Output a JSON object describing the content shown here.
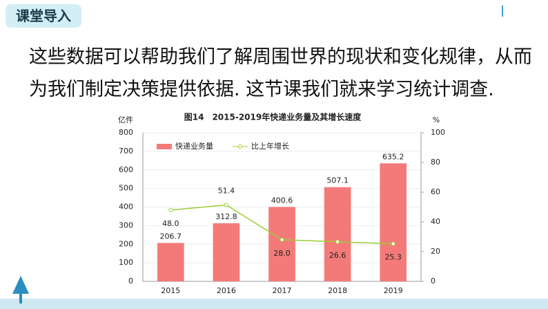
{
  "header": "课堂导入",
  "paragraph": [
    "这些数据可以帮助我们了解周围世界的现状和变化规律，从而",
    "为我们制定决策提供依据. 这节课我们就来学习统计调查."
  ],
  "chart_data": {
    "type": "bar",
    "title": "图14　2015-2019年快递业务量及其增长速度",
    "ylabel": "亿件",
    "y2label": "%",
    "categories": [
      "2015",
      "2016",
      "2017",
      "2018",
      "2019"
    ],
    "series": [
      {
        "name": "快递业务量",
        "type": "bar",
        "color": "#f47a7a",
        "values": [
          206.7,
          312.8,
          400.6,
          507.1,
          635.2
        ]
      },
      {
        "name": "比上年增长",
        "type": "line",
        "axis": "y2",
        "color": "#9acd32",
        "values": [
          48,
          51.4,
          28,
          26.6,
          25.3
        ],
        "value_labels": [
          "48.0",
          "51.4",
          "28.0",
          "26.6",
          "25.3"
        ]
      }
    ],
    "ylim": [
      0,
      800
    ],
    "yticks": [
      0,
      100,
      200,
      300,
      400,
      500,
      600,
      700,
      800
    ],
    "y2lim": [
      0,
      100
    ],
    "y2ticks": [
      0,
      20,
      40,
      60,
      80,
      100
    ],
    "grid": true,
    "legend": "top-left"
  }
}
